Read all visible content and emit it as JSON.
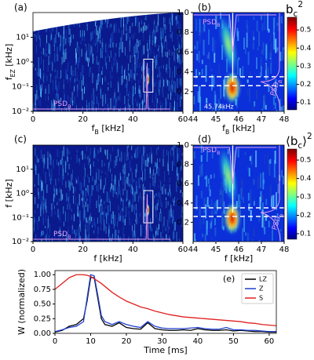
{
  "chart_data": [
    {
      "type": "heatmap",
      "panel": "(a)",
      "xlabel": {
        "base": "f",
        "sub": "B",
        "unit": " [kHz]"
      },
      "ylabel": {
        "base": "f",
        "sub": "EZ",
        "unit": " [kHz]"
      },
      "xlim": [
        0,
        60
      ],
      "xticks": [
        0,
        20,
        40,
        60
      ],
      "yscale": "log",
      "ylim": [
        0.01,
        100
      ],
      "yticks": [
        {
          "value": 0.01,
          "label": "10⁻²"
        },
        {
          "value": 0.1,
          "label": "10⁻¹"
        },
        {
          "value": 1,
          "label": "10⁰"
        },
        {
          "value": 10,
          "label": "10¹"
        }
      ],
      "annotations": [
        {
          "base": "PSD",
          "sub": "B"
        }
      ]
    },
    {
      "type": "heatmap",
      "panel": "(b)",
      "xlabel": {
        "base": "f",
        "sub": "B",
        "unit": " [kHz]"
      },
      "xlim": [
        44,
        48
      ],
      "xticks": [
        44,
        45,
        46,
        47,
        48
      ],
      "ylim": [
        0,
        1
      ],
      "yticks": [
        0.2,
        0.4,
        0.6,
        0.8,
        {
          "value": 1,
          "label": "1.0"
        }
      ],
      "colorbar": {
        "label": {
          "base": "b",
          "sub": "c",
          "sup": "2"
        },
        "lim": [
          0.06,
          0.57
        ],
        "ticks": [
          0.1,
          0.2,
          0.3,
          0.4,
          0.5
        ]
      },
      "annotations": [
        {
          "base": "PSD",
          "sub": "B"
        },
        "45.74kHz",
        {
          "base": "PSD",
          "sub": "B"
        }
      ]
    },
    {
      "type": "heatmap",
      "panel": "(c)",
      "xlabel": {
        "base": "f",
        "unit": " [kHz]"
      },
      "ylabel": {
        "base": "f",
        "unit": " [kHz]"
      },
      "xlim": [
        0,
        60
      ],
      "xticks": [
        0,
        20,
        40,
        60
      ],
      "yscale": "log",
      "ylim": [
        0.01,
        100
      ],
      "yticks": [
        {
          "value": 0.01,
          "label": "10⁻²"
        },
        {
          "value": 0.1,
          "label": "10⁻¹"
        },
        {
          "value": 1,
          "label": "10⁰"
        },
        {
          "value": 10,
          "label": "10¹"
        }
      ],
      "annotations": [
        {
          "base": "PSD",
          "sub": "B"
        }
      ]
    },
    {
      "type": "heatmap",
      "panel": "(d)",
      "xlabel": {
        "base": "f",
        "unit": " [kHz]"
      },
      "xlim": [
        44,
        48
      ],
      "xticks": [
        44,
        45,
        46,
        47,
        48
      ],
      "ylim": [
        0,
        1
      ],
      "yticks": [
        0.2,
        0.4,
        0.6,
        0.8,
        {
          "value": 1,
          "label": "1.0"
        }
      ],
      "colorbar": {
        "label": {
          "base": "⟨b",
          "sub": "c",
          "tail": "⟩",
          "sup": "2"
        },
        "lim": [
          0.07,
          0.56
        ],
        "ticks": [
          0.1,
          0.2,
          0.3,
          0.4,
          0.5
        ]
      },
      "annotations": [
        {
          "base": "PSD",
          "sub": "B"
        },
        {
          "base": "PSD",
          "sub": "B"
        }
      ]
    },
    {
      "type": "line",
      "panel": "(e)",
      "xlabel": "Time [ms]",
      "ylabel": "W (normalized)",
      "xlim": [
        0,
        62
      ],
      "xticks": [
        0,
        10,
        20,
        30,
        40,
        50,
        60
      ],
      "ylim": [
        0,
        1.07
      ],
      "yticks": [
        {
          "value": 0,
          "label": "0.00"
        },
        0.25,
        {
          "value": 0.5,
          "label": "0.50"
        },
        0.75,
        {
          "value": 1,
          "label": "1.00"
        }
      ],
      "x": [
        0,
        2,
        4,
        6,
        8,
        9,
        10,
        11,
        12,
        13,
        14,
        16,
        18,
        20,
        22,
        24,
        26,
        28,
        30,
        32,
        34,
        36,
        38,
        40,
        42,
        44,
        46,
        48,
        50,
        52,
        54,
        56,
        58,
        60,
        62
      ],
      "series": [
        {
          "name": "LZ",
          "color": "#000000",
          "values": [
            0.02,
            0.05,
            0.12,
            0.15,
            0.25,
            0.55,
            0.95,
            0.95,
            0.6,
            0.25,
            0.15,
            0.12,
            0.18,
            0.1,
            0.08,
            0.07,
            0.18,
            0.08,
            0.06,
            0.05,
            0.05,
            0.06,
            0.05,
            0.08,
            0.06,
            0.05,
            0.05,
            0.06,
            0.04,
            0.05,
            0.04,
            0.03,
            0.03,
            0.02,
            0.02
          ]
        },
        {
          "name": "Z",
          "color": "#1f3fd0",
          "values": [
            0.03,
            0.06,
            0.1,
            0.12,
            0.2,
            0.6,
            1.0,
            0.98,
            0.65,
            0.3,
            0.2,
            0.15,
            0.2,
            0.15,
            0.12,
            0.1,
            0.2,
            0.12,
            0.09,
            0.08,
            0.08,
            0.08,
            0.09,
            0.1,
            0.08,
            0.07,
            0.07,
            0.1,
            0.06,
            0.06,
            0.05,
            0.05,
            0.04,
            0.03,
            0.03
          ]
        },
        {
          "name": "S",
          "color": "#e02020",
          "values": [
            0.75,
            0.85,
            0.95,
            1.0,
            1.0,
            0.99,
            0.97,
            0.93,
            0.89,
            0.85,
            0.8,
            0.7,
            0.62,
            0.55,
            0.5,
            0.45,
            0.42,
            0.38,
            0.35,
            0.32,
            0.3,
            0.28,
            0.27,
            0.26,
            0.25,
            0.24,
            0.23,
            0.22,
            0.21,
            0.2,
            0.18,
            0.17,
            0.15,
            0.14,
            0.13
          ]
        }
      ],
      "legend": "upper right"
    }
  ]
}
